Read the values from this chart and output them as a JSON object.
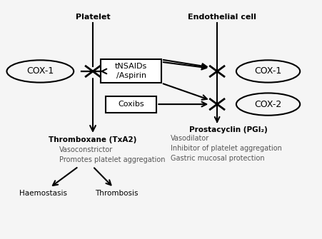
{
  "fig_width": 4.52,
  "fig_height": 3.35,
  "dpi": 100,
  "bg_color": "#f5f5f5",
  "text_color": "#000000",
  "gray_text_color": "#555555",
  "platelet_label": "Platelet",
  "endothelial_label": "Endothelial cell",
  "cox1_left_label": "COX-1",
  "cox1_right_label": "COX-1",
  "cox2_right_label": "COX-2",
  "tnsaids_label": "tNSAIDs\n/Aspirin",
  "coxibs_label": "Coxibs",
  "thromboxane_label": "Thromboxane (TxA2)",
  "prostacyclin_label": "Prostacyclin (PGI₂)",
  "vasoconstrictor_label": "Vasoconstrictor",
  "promotes_label": "Promotes platelet aggregation",
  "vasodilator_label": "Vasodilator",
  "inhibitor_label": "Inhibitor of platelet aggregation",
  "gastric_label": "Gastric mucosal protection",
  "haemostasis_label": "Haemostasis",
  "thrombosis_label": "Thrombosis"
}
